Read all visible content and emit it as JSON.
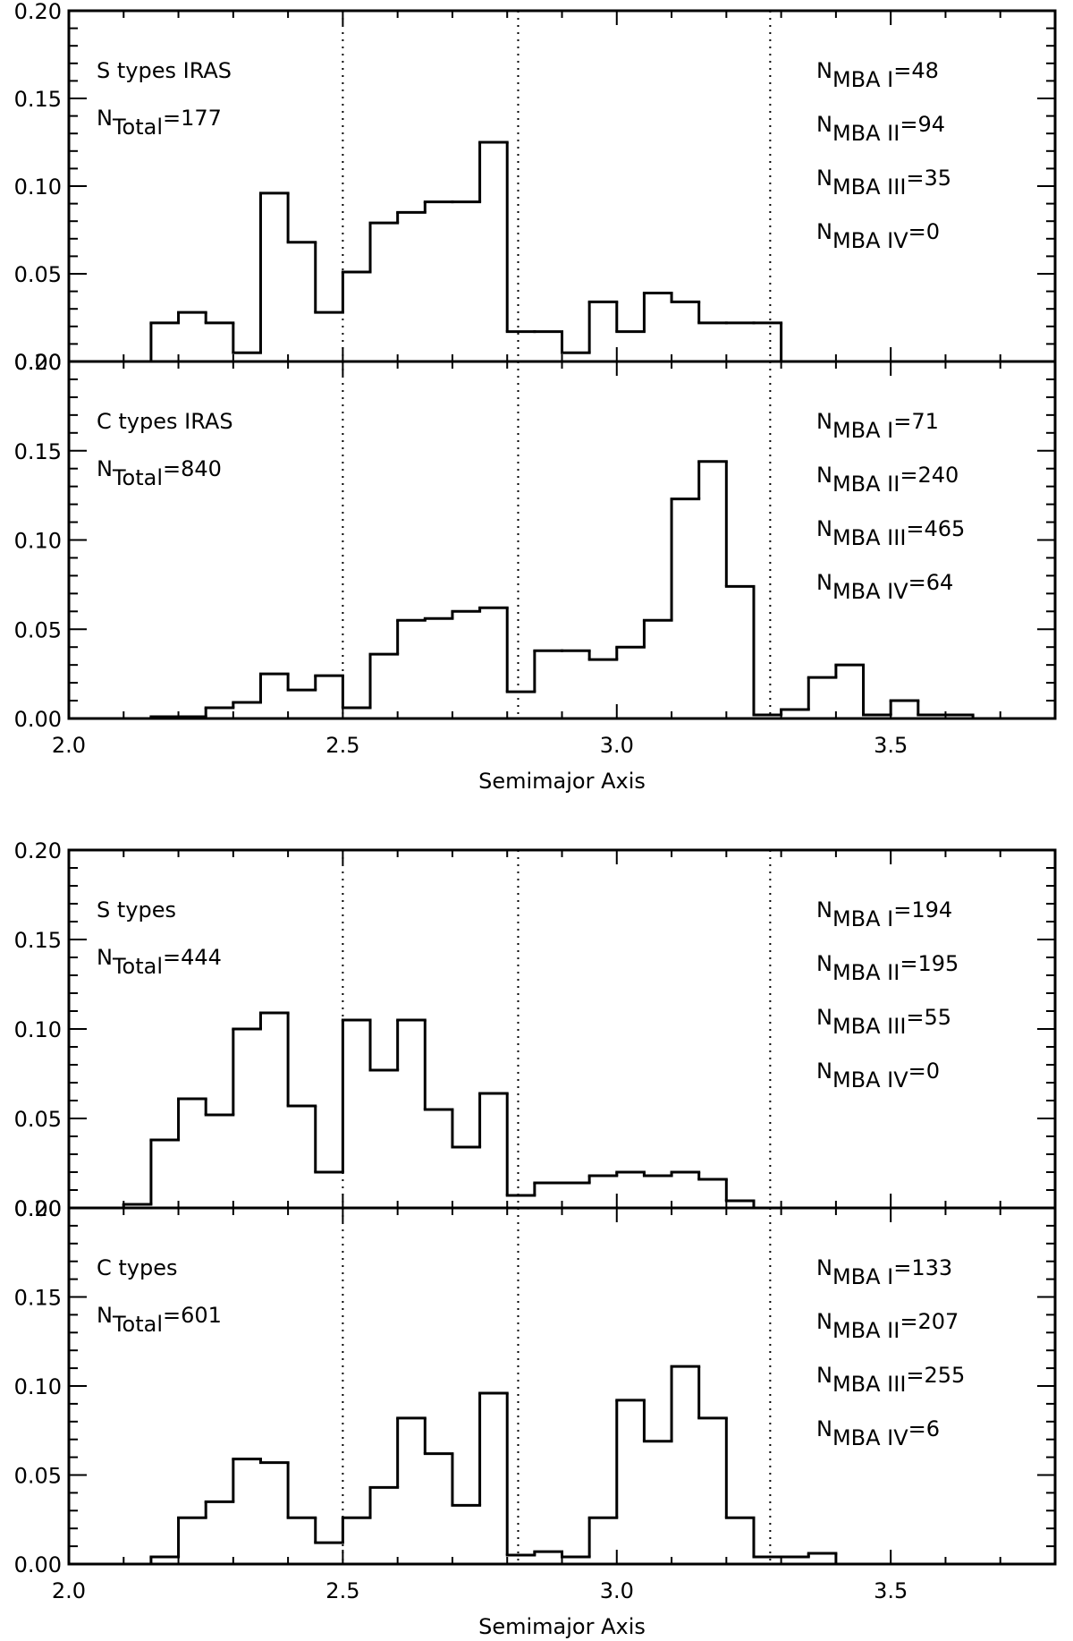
{
  "figure": {
    "xlabel": "Semimajor Axis",
    "bin_width": 0.05,
    "boundaries": [
      2.5,
      2.82,
      3.28
    ]
  },
  "chart_data": [
    {
      "type": "histogram",
      "panel_title": "S types IRAS",
      "total_label": "Total",
      "total_value": "177",
      "xlim": [
        2.0,
        3.8
      ],
      "ylim": [
        0.0,
        0.2
      ],
      "xticks": [
        "2.0",
        "2.5",
        "3.0",
        "3.5"
      ],
      "yticks": [
        "0.00",
        "0.05",
        "0.10",
        "0.15",
        "0.20"
      ],
      "xlabel": "",
      "bins": [
        [
          2.175,
          0.022
        ],
        [
          2.225,
          0.028
        ],
        [
          2.275,
          0.022
        ],
        [
          2.325,
          0.005
        ],
        [
          2.375,
          0.096
        ],
        [
          2.425,
          0.068
        ],
        [
          2.475,
          0.028
        ],
        [
          2.525,
          0.051
        ],
        [
          2.575,
          0.079
        ],
        [
          2.625,
          0.085
        ],
        [
          2.675,
          0.091
        ],
        [
          2.725,
          0.091
        ],
        [
          2.775,
          0.125
        ],
        [
          2.825,
          0.017
        ],
        [
          2.875,
          0.017
        ],
        [
          2.925,
          0.005
        ],
        [
          2.975,
          0.034
        ],
        [
          3.025,
          0.017
        ],
        [
          3.075,
          0.039
        ],
        [
          3.125,
          0.034
        ],
        [
          3.175,
          0.022
        ],
        [
          3.225,
          0.022
        ],
        [
          3.275,
          0.022
        ]
      ],
      "counts": [
        {
          "label": "MBA I",
          "value": "48"
        },
        {
          "label": "MBA II",
          "value": "94"
        },
        {
          "label": "MBA III",
          "value": "35"
        },
        {
          "label": "MBA IV",
          "value": "0"
        }
      ]
    },
    {
      "type": "histogram",
      "panel_title": "C types IRAS",
      "total_label": "Total",
      "total_value": "840",
      "xlim": [
        2.0,
        3.8
      ],
      "ylim": [
        0.0,
        0.2
      ],
      "xticks": [
        "2.0",
        "2.5",
        "3.0",
        "3.5"
      ],
      "yticks": [
        "0.00",
        "0.05",
        "0.10",
        "0.15",
        "0.20"
      ],
      "xlabel": "Semimajor Axis",
      "bins": [
        [
          2.175,
          0.001
        ],
        [
          2.225,
          0.001
        ],
        [
          2.275,
          0.006
        ],
        [
          2.325,
          0.009
        ],
        [
          2.375,
          0.025
        ],
        [
          2.425,
          0.016
        ],
        [
          2.475,
          0.024
        ],
        [
          2.525,
          0.006
        ],
        [
          2.575,
          0.036
        ],
        [
          2.625,
          0.055
        ],
        [
          2.675,
          0.056
        ],
        [
          2.725,
          0.06
        ],
        [
          2.775,
          0.062
        ],
        [
          2.825,
          0.015
        ],
        [
          2.875,
          0.038
        ],
        [
          2.925,
          0.038
        ],
        [
          2.975,
          0.033
        ],
        [
          3.025,
          0.04
        ],
        [
          3.075,
          0.055
        ],
        [
          3.125,
          0.123
        ],
        [
          3.175,
          0.144
        ],
        [
          3.225,
          0.074
        ],
        [
          3.275,
          0.002
        ],
        [
          3.325,
          0.005
        ],
        [
          3.375,
          0.023
        ],
        [
          3.425,
          0.03
        ],
        [
          3.475,
          0.002
        ],
        [
          3.525,
          0.01
        ],
        [
          3.575,
          0.002
        ],
        [
          3.625,
          0.002
        ]
      ],
      "counts": [
        {
          "label": "MBA I",
          "value": "71"
        },
        {
          "label": "MBA II",
          "value": "240"
        },
        {
          "label": "MBA III",
          "value": "465"
        },
        {
          "label": "MBA IV",
          "value": "64"
        }
      ]
    },
    {
      "type": "histogram",
      "panel_title": "S types",
      "total_label": "Total",
      "total_value": "444",
      "xlim": [
        2.0,
        3.8
      ],
      "ylim": [
        0.0,
        0.2
      ],
      "xticks": [
        "2.0",
        "2.5",
        "3.0",
        "3.5"
      ],
      "yticks": [
        "0.00",
        "0.05",
        "0.10",
        "0.15",
        "0.20"
      ],
      "xlabel": "",
      "bins": [
        [
          2.125,
          0.002
        ],
        [
          2.175,
          0.038
        ],
        [
          2.225,
          0.061
        ],
        [
          2.275,
          0.052
        ],
        [
          2.325,
          0.1
        ],
        [
          2.375,
          0.109
        ],
        [
          2.425,
          0.057
        ],
        [
          2.475,
          0.02
        ],
        [
          2.525,
          0.105
        ],
        [
          2.575,
          0.077
        ],
        [
          2.625,
          0.105
        ],
        [
          2.675,
          0.055
        ],
        [
          2.725,
          0.034
        ],
        [
          2.775,
          0.064
        ],
        [
          2.825,
          0.007
        ],
        [
          2.875,
          0.014
        ],
        [
          2.925,
          0.014
        ],
        [
          2.975,
          0.018
        ],
        [
          3.025,
          0.02
        ],
        [
          3.075,
          0.018
        ],
        [
          3.125,
          0.02
        ],
        [
          3.175,
          0.016
        ],
        [
          3.225,
          0.004
        ]
      ],
      "counts": [
        {
          "label": "MBA I",
          "value": "194"
        },
        {
          "label": "MBA II",
          "value": "195"
        },
        {
          "label": "MBA III",
          "value": "55"
        },
        {
          "label": "MBA IV",
          "value": "0"
        }
      ]
    },
    {
      "type": "histogram",
      "panel_title": "C types",
      "total_label": "Total",
      "total_value": "601",
      "xlim": [
        2.0,
        3.8
      ],
      "ylim": [
        0.0,
        0.2
      ],
      "xticks": [
        "2.0",
        "2.5",
        "3.0",
        "3.5"
      ],
      "yticks": [
        "0.00",
        "0.05",
        "0.10",
        "0.15",
        "0.20"
      ],
      "xlabel": "Semimajor Axis",
      "bins": [
        [
          2.175,
          0.004
        ],
        [
          2.225,
          0.026
        ],
        [
          2.275,
          0.035
        ],
        [
          2.325,
          0.059
        ],
        [
          2.375,
          0.057
        ],
        [
          2.425,
          0.026
        ],
        [
          2.475,
          0.012
        ],
        [
          2.525,
          0.026
        ],
        [
          2.575,
          0.043
        ],
        [
          2.625,
          0.082
        ],
        [
          2.675,
          0.062
        ],
        [
          2.725,
          0.033
        ],
        [
          2.775,
          0.096
        ],
        [
          2.825,
          0.005
        ],
        [
          2.875,
          0.007
        ],
        [
          2.925,
          0.004
        ],
        [
          2.975,
          0.026
        ],
        [
          3.025,
          0.092
        ],
        [
          3.075,
          0.069
        ],
        [
          3.125,
          0.111
        ],
        [
          3.175,
          0.082
        ],
        [
          3.225,
          0.026
        ],
        [
          3.275,
          0.004
        ],
        [
          3.325,
          0.004
        ],
        [
          3.375,
          0.006
        ]
      ],
      "counts": [
        {
          "label": "MBA I",
          "value": "133"
        },
        {
          "label": "MBA II",
          "value": "207"
        },
        {
          "label": "MBA III",
          "value": "255"
        },
        {
          "label": "MBA IV",
          "value": "6"
        }
      ]
    }
  ]
}
